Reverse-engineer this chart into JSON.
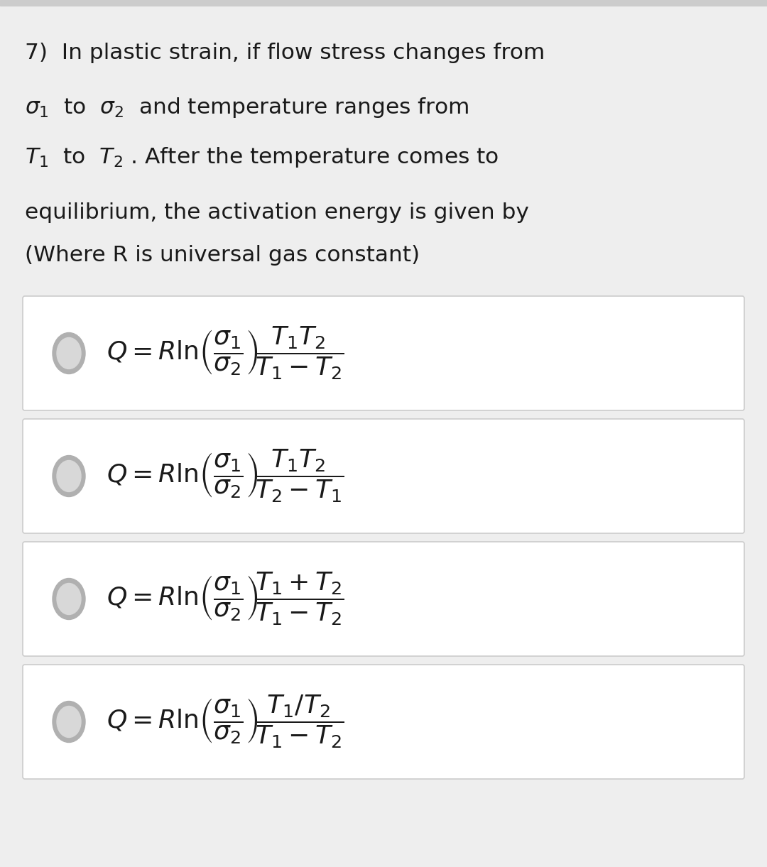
{
  "background_color": "#eeeeee",
  "top_bar_color": "#cccccc",
  "box_bg": "#ffffff",
  "box_edge": "#cccccc",
  "text_color": "#1a1a1a",
  "radio_outer": "#b0b0b0",
  "radio_inner": "#d8d8d8",
  "question_lines": [
    "7)  In plastic strain, if flow stress changes from",
    "$\\sigma_1$  to  $\\sigma_2$  and temperature ranges from",
    "$T_1$  to  $T_2$ . After the temperature comes to",
    "equilibrium, the activation energy is given by",
    "(Where R is universal gas constant)"
  ],
  "options": [
    "$Q = R\\ln\\!\\left(\\dfrac{\\sigma_1}{\\sigma_2}\\right)\\!\\dfrac{T_1 T_2}{T_1-T_2}$",
    "$Q = R\\ln\\!\\left(\\dfrac{\\sigma_1}{\\sigma_2}\\right)\\!\\dfrac{T_1 T_2}{T_2-T_1}$",
    "$Q = R\\ln\\!\\left(\\dfrac{\\sigma_1}{\\sigma_2}\\right)\\!\\dfrac{T_1+T_2}{T_1-T_2}$",
    "$Q = R\\ln\\!\\left(\\dfrac{\\sigma_1}{\\sigma_2}\\right)\\!\\dfrac{T_1/T_2}{T_1-T_2}$"
  ],
  "fig_width": 10.8,
  "fig_height": 12.21,
  "dpi": 100
}
